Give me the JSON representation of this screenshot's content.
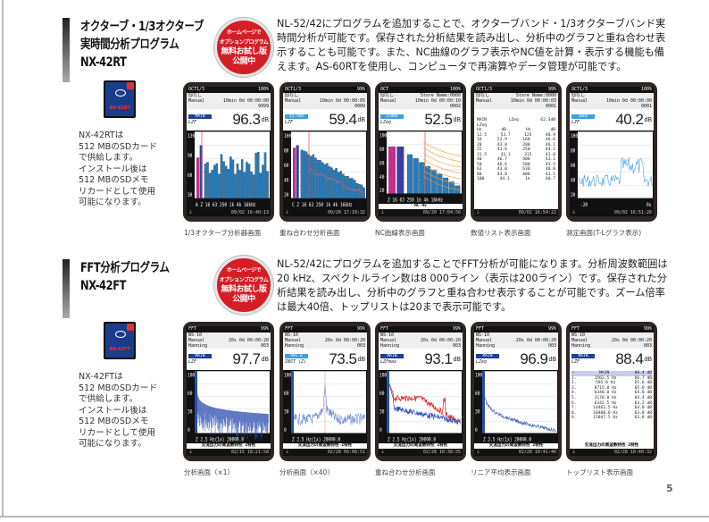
{
  "page_number": "5",
  "badge": {
    "line1": "ホームページで",
    "line2": "オプションプログラム",
    "line3": "無料お試し版",
    "line4": "公開中"
  },
  "sections": [
    {
      "title_lines": [
        "オクターブ・1/3オクターブ",
        "実時間分析プログラム",
        "NX-42RT"
      ],
      "description": "NL-52/42にプログラムを追加することで、オクターブバンド・1/3オクターブバンド実時間分析が可能です。保存された分析結果を読み出し、分析中のグラフと重ね合わせ表示することも可能です。また、NC曲線のグラフ表示やNC値を計算・表示する機能も備えます。AS-60RTを使用し、コンピュータで再演算やデータ管理が可能です。",
      "sd_card_label": "NX-42RT",
      "card_text": "NX-42RTは\n512 MBのSDカード\nで供給します。\nインストール後は\n512 MBのSDメモ\nリカードとして使用\n可能になります。",
      "screens": [
        {
          "caption": "1/3オクターブ分析器画面",
          "mode": "OCT1/3",
          "battery": "100%",
          "h1": [
            "邸なし",
            ""
          ],
          "h2": [
            "Manual",
            "10min  0d 00:00:00"
          ],
          "h3": [
            "",
            "9999"
          ],
          "tag": "MAIN",
          "weight": "LZF",
          "value": "96.3",
          "unit": "dB",
          "plot": "bars",
          "footer": "09/02 16:40:13"
        },
        {
          "caption": "重ね合わせ分析画面",
          "mode": "OCT1/3",
          "battery": "99%",
          "h1": [
            "邸なし",
            ""
          ],
          "h2": [
            "Manual",
            "10min  0d 00:00:05"
          ],
          "h3": [
            "",
            "0009"
          ],
          "tag": "12.5Hz",
          "weight": "LZF",
          "value": "59.4",
          "unit": "dB",
          "plot": "overlay",
          "footer": "09/20 17:10:32"
        },
        {
          "caption": "NC曲線表示画面",
          "mode": "OCT",
          "battery": "100%",
          "h1": [
            "邸なし",
            "Store Name:0000"
          ],
          "h2": [
            "Manual",
            "10min  0d 00:00:10"
          ],
          "h3": [
            "",
            "0002"
          ],
          "tag": "250Hz",
          "weight": "LZeq",
          "value": "52.5",
          "unit": "dB",
          "plot": "nc",
          "sub": "NC-45",
          "footer": "09/20 17:04:50"
        },
        {
          "caption": "数値リスト表示画面",
          "mode": "OCT1/3",
          "battery": "99%",
          "h1": [
            "邸なし",
            "Store Name:0000"
          ],
          "h2": [
            "Manual",
            "10min  0d 00:00:03"
          ],
          "h3": [
            "",
            "0001"
          ],
          "plot": "list",
          "list": {
            "tag": "MAIN",
            "weight": "LZeq",
            "total": "62.3dB",
            "sub": "LZeq",
            "head": [
              "Hz",
              "dB",
              "Hz",
              "dB"
            ],
            "rows": [
              [
                "12.5",
                "53.7",
                "125",
                "48.9"
              ],
              [
                "16",
                "52.9",
                "160",
                "46.6"
              ],
              [
                "20",
                "43.8",
                "200",
                "46.1"
              ],
              [
                "25",
                "43.6",
                "250",
                "44.1"
              ],
              [
                "31.5",
                "43.1",
                "315",
                "43.8"
              ],
              [
                "40",
                "46.7",
                "400",
                "43.1"
              ],
              [
                "50",
                "46.6",
                "500",
                "42.5"
              ],
              [
                "63",
                "43.0",
                "630",
                "40.0"
              ],
              [
                "80",
                "43.0",
                "800",
                "41.1"
              ],
              [
                "100",
                "44.1",
                "1k",
                "40.7"
              ]
            ]
          },
          "footer": "09/02 16:54:22"
        },
        {
          "caption": "測定画面(T-Lグラフ表示)",
          "mode": "OCT1/3",
          "battery": "100%",
          "h1": [
            "邸なし",
            ""
          ],
          "h2": [
            "Manual",
            "10min  0d 00:00:00"
          ],
          "h3": [
            "",
            "0001"
          ],
          "tag": "1kHz",
          "weight": "LZF",
          "value": "40.2",
          "unit": "dB",
          "plot": "tl",
          "footer": "09/02 16:51:26"
        }
      ]
    },
    {
      "title_lines": [
        "FFT分析プログラム",
        "NX-42FT"
      ],
      "description": "NL-52/42にプログラムを追加することでFFT分析が可能になります。分析周波数範囲は20 kHz、スペクトルライン数は8 000ライン（表示は200ライン）です。保存された分析結果を読み出し、分析中のグラフと重ね合わせ表示することが可能です。ズーム倍率は最大40倍、トップリストは20まで表示可能です。",
      "sd_card_label": "NX-42FT",
      "card_text": "NX-42FTは\n512 MBのSDカード\nで供給します。\nインストール後は\n512 MBのSDメモ\nリカードとして使用\n可能になります。",
      "screens": [
        {
          "caption": "分析画面（×1）",
          "mode": "FFT",
          "battery": "99%",
          "h1": [
            "WS-10",
            ""
          ],
          "h2": [
            "Manual",
            "20s   0d 00:00:20"
          ],
          "h3": [
            "Hanning",
            "003"
          ],
          "tag": "MAIN",
          "weight": "LZF",
          "value": "97.7",
          "unit": "dB",
          "plot": "fft",
          "sub": "交流出力の周波数特性 Z特性",
          "footer": "02/15 18:21:58"
        },
        {
          "caption": "分析画面（×40）",
          "mode": "FFT",
          "battery": "99%",
          "h1": [
            "WS-10",
            ""
          ],
          "h2": [
            "Manual",
            "20s   0d 00:00:20"
          ],
          "h3": [
            "Hanning",
            "003"
          ],
          "tag": "995.0",
          "weight": "INST (Z)",
          "value": "73.5",
          "unit": "dB",
          "plot": "zoom",
          "sub": "交流出力の周波数特性 Z特性",
          "footer": "02/28 09:06:51"
        },
        {
          "caption": "重ね合わせ分析画面",
          "mode": "FFT",
          "battery": "99%",
          "h1": [
            "WS-10",
            ""
          ],
          "h2": [
            "Manual",
            "20s   0d 00:00:20"
          ],
          "h3": [
            "Hanning",
            "003"
          ],
          "tag": "MAIN",
          "weight": "LZFmax",
          "value": "93.1",
          "unit": "dB",
          "plot": "fftover",
          "sub": "交流出力の周波数特性 Z特性",
          "footer": "02/28 10:38:55"
        },
        {
          "caption": "リニア平均表示画面",
          "mode": "FFT",
          "battery": "99%",
          "h1": [
            "WS-10",
            ""
          ],
          "h2": [
            "Manual",
            "20s   0d 00:00:20"
          ],
          "h3": [
            "Hanning",
            "003"
          ],
          "tag": "MAIN",
          "weight": "LZeq",
          "value": "96.9",
          "unit": "dB",
          "plot": "avg",
          "sub": "交流出力の周波数特性 Z特性",
          "footer": "02/28 10:41:40"
        },
        {
          "caption": "トップリスト表示画面",
          "mode": "FFT",
          "battery": "99%",
          "h1": [
            "WS-10",
            ""
          ],
          "h2": [
            "Manual",
            "20s   0d 00:00:20"
          ],
          "h3": [
            "Hanning",
            "003"
          ],
          "tag": "MAIN",
          "weight": "LZF",
          "value": "88.4",
          "unit": "dB",
          "plot": "toplist",
          "toplist": {
            "head": [
              "—",
              "MAIN",
              "88.4 dB"
            ],
            "rows": [
              [
                "1.",
                "1562.5 Hz",
                "66.7 dB"
              ],
              [
                "2.",
                "595.0 Hz",
                "65.6 dB"
              ],
              [
                "3.",
                "8715.0 Hz",
                "65.0 dB"
              ],
              [
                "4.",
                "6340.0 Hz",
                "64.8 dB"
              ],
              [
                "5.",
                "3170.0 Hz",
                "64.4 dB"
              ],
              [
                "6.",
                "6342.5 Hz",
                "64.2 dB"
              ],
              [
                "7.",
                "14462.5 Hz",
                "64.0 dB"
              ],
              [
                "8.",
                "10400.0 Hz",
                "63.8 dB"
              ],
              [
                "9.",
                "15847.5 Hz",
                "63.8 dB"
              ]
            ]
          },
          "sub": "交流出力の周波数特性 Z特性",
          "footer": "02/28 10:40:32"
        }
      ]
    }
  ]
}
